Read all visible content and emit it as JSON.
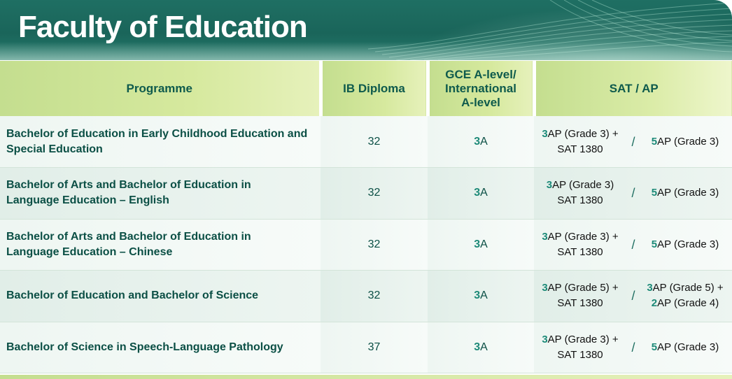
{
  "header": {
    "title": "Faculty of Education"
  },
  "columns": {
    "programme": "Programme",
    "ib": "IB Diploma",
    "gce_line1": "GCE A-level/",
    "gce_line2": "International",
    "gce_line3": "A-level",
    "sat": "SAT / AP"
  },
  "colors": {
    "banner": "#1f6f63",
    "header_band": "#c4de8f",
    "text_dark_green": "#0b4f45",
    "accent_number": "#1d8a78"
  },
  "rows": [
    {
      "programme_line1": "Bachelor of Education in Early Childhood Education and",
      "programme_line2": "Special Education",
      "ib": "32",
      "gce_num": "3",
      "gce_grade": "A",
      "sat_left_num": "3",
      "sat_left_line1": "AP (Grade 3) +",
      "sat_left_line2": "SAT 1380",
      "slash": "/",
      "sat_right_num1": "5",
      "sat_right_line1": "AP (Grade 3)",
      "sat_right_num2": "",
      "sat_right_line2": ""
    },
    {
      "programme_line1": "Bachelor of Arts and Bachelor of Education in",
      "programme_line2": "Language Education – English",
      "ib": "32",
      "gce_num": "3",
      "gce_grade": "A",
      "sat_left_num": "3",
      "sat_left_line1": "AP (Grade 3)",
      "sat_left_line2": "SAT 1380",
      "slash": "/",
      "sat_right_num1": "5",
      "sat_right_line1": "AP (Grade 3)",
      "sat_right_num2": "",
      "sat_right_line2": ""
    },
    {
      "programme_line1": "Bachelor of Arts and Bachelor of Education in",
      "programme_line2": "Language Education – Chinese",
      "ib": "32",
      "gce_num": "3",
      "gce_grade": "A",
      "sat_left_num": "3",
      "sat_left_line1": "AP (Grade 3) +",
      "sat_left_line2": "SAT 1380",
      "slash": "/",
      "sat_right_num1": "5",
      "sat_right_line1": "AP (Grade 3)",
      "sat_right_num2": "",
      "sat_right_line2": ""
    },
    {
      "programme_line1": "Bachelor of Education and Bachelor of Science",
      "programme_line2": "",
      "ib": "32",
      "gce_num": "3",
      "gce_grade": "A",
      "sat_left_num": "3",
      "sat_left_line1": "AP (Grade 5) +",
      "sat_left_line2": "SAT 1380",
      "slash": "/",
      "sat_right_num1": "3",
      "sat_right_line1": "AP (Grade 5) +",
      "sat_right_num2": "2",
      "sat_right_line2": "AP (Grade 4)"
    },
    {
      "programme_line1": "Bachelor of Science in Speech-Language Pathology",
      "programme_line2": "",
      "ib": "37",
      "gce_num": "3",
      "gce_grade": "A",
      "sat_left_num": "3",
      "sat_left_line1": "AP (Grade 3) +",
      "sat_left_line2": "SAT 1380",
      "slash": "/",
      "sat_right_num1": "5",
      "sat_right_line1": "AP (Grade 3)",
      "sat_right_num2": "",
      "sat_right_line2": ""
    }
  ]
}
